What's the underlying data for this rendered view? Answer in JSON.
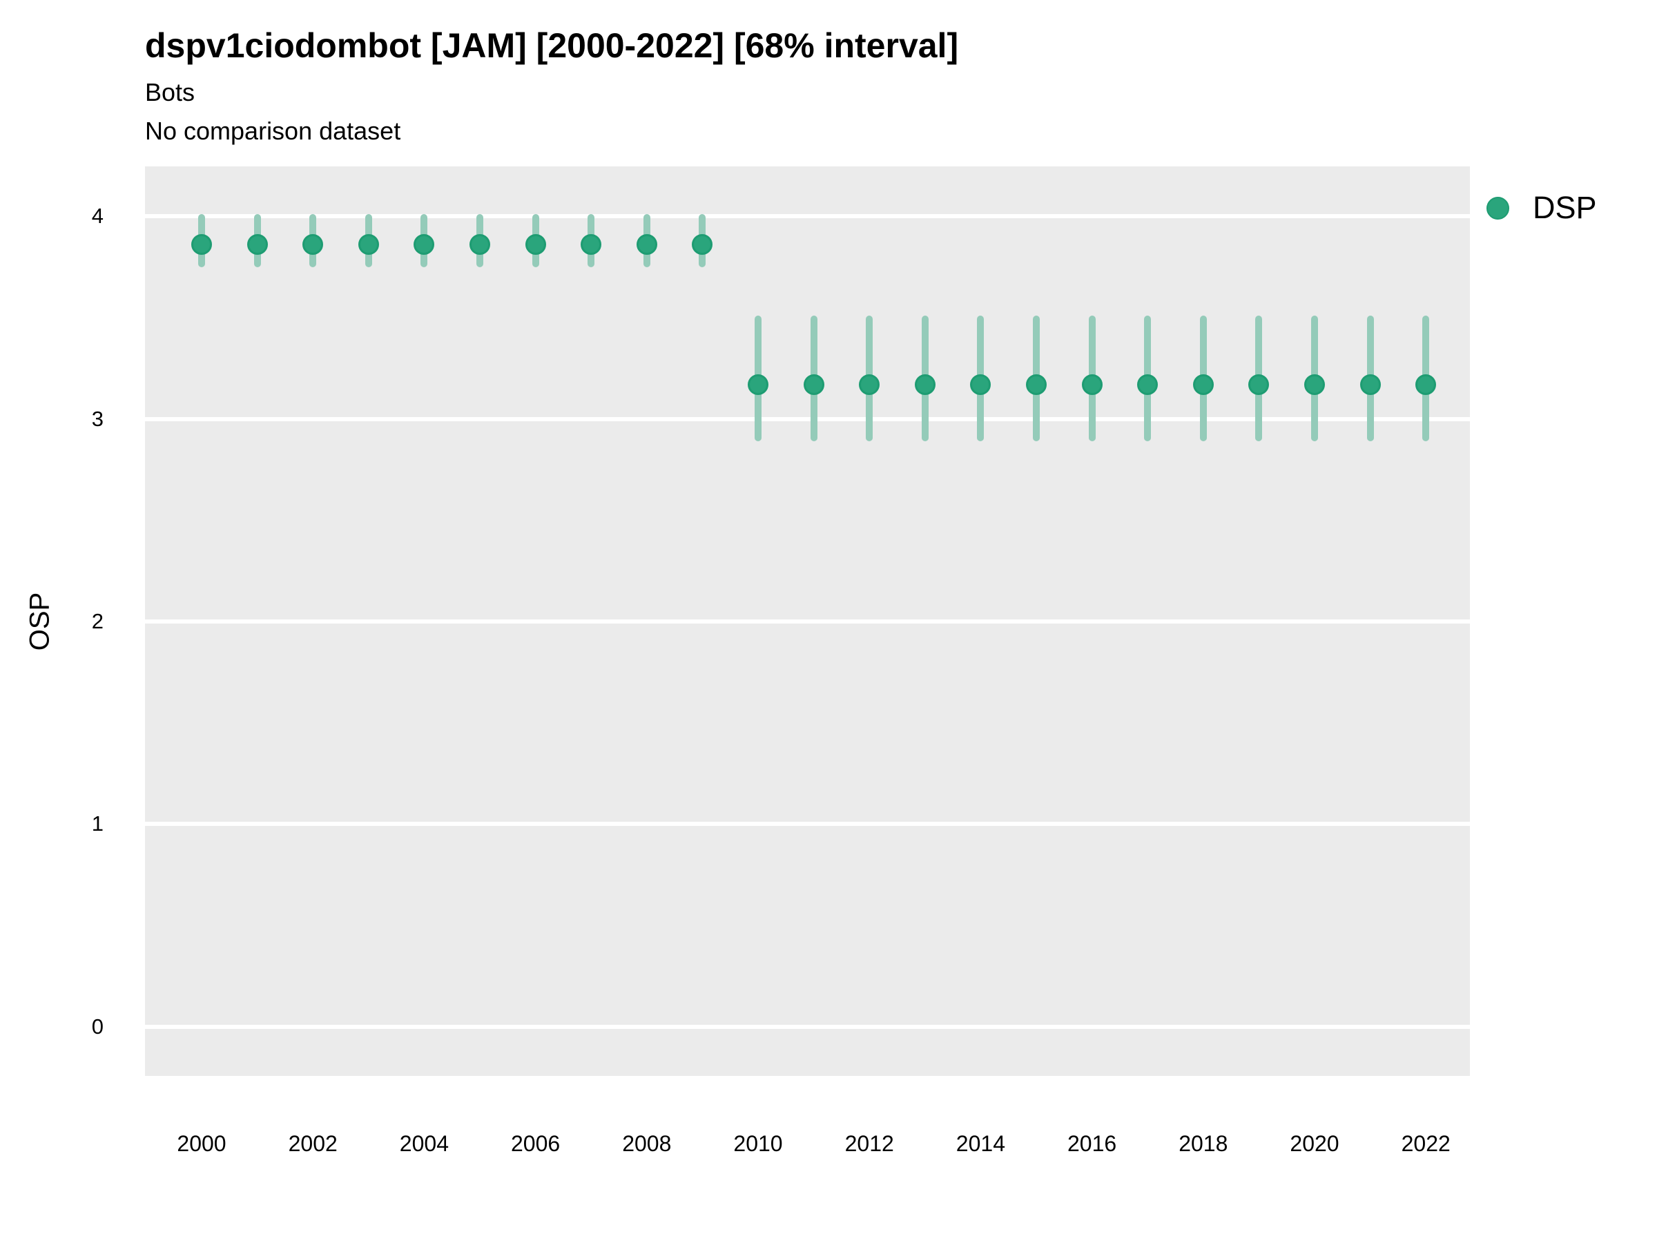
{
  "title": "dspv1ciodombot [JAM] [2000-2022] [68% interval]",
  "subtitle": "Bots",
  "comparison_note": "No comparison dataset",
  "legend": {
    "position": "right-top",
    "items": [
      {
        "label": "DSP",
        "color": "#2aa57c"
      }
    ]
  },
  "colors": {
    "background": "#ffffff",
    "panel_bg": "#ebebeb",
    "gridline": "#ffffff",
    "point": "#2aa57c",
    "point_border": "#1e9c72",
    "interval_bar": "#94cbb9",
    "text": "#000000"
  },
  "chart_data": {
    "type": "scatter",
    "title": "dspv1ciodombot [JAM] [2000-2022] [68% interval]",
    "subtitle": "Bots",
    "annotation": "No comparison dataset",
    "xlabel": "",
    "ylabel": "OSP",
    "interval": "68%",
    "ylim": [
      -0.25,
      4.25
    ],
    "yticks": [
      0,
      1,
      2,
      3,
      4
    ],
    "xticks": [
      2000,
      2002,
      2004,
      2006,
      2008,
      2010,
      2012,
      2014,
      2016,
      2018,
      2020,
      2022
    ],
    "grid": "horizontal-major-white",
    "legend_position": "right-top",
    "series": [
      {
        "name": "DSP",
        "x": [
          2000,
          2001,
          2002,
          2003,
          2004,
          2005,
          2006,
          2007,
          2008,
          2009,
          2010,
          2011,
          2012,
          2013,
          2014,
          2015,
          2016,
          2017,
          2018,
          2019,
          2020,
          2021,
          2022
        ],
        "y": [
          3.86,
          3.86,
          3.86,
          3.86,
          3.86,
          3.86,
          3.86,
          3.86,
          3.86,
          3.86,
          3.17,
          3.17,
          3.17,
          3.17,
          3.17,
          3.17,
          3.17,
          3.17,
          3.17,
          3.17,
          3.17,
          3.17,
          3.17
        ],
        "y_low": [
          3.75,
          3.75,
          3.75,
          3.75,
          3.75,
          3.75,
          3.75,
          3.75,
          3.75,
          3.75,
          2.89,
          2.89,
          2.89,
          2.89,
          2.89,
          2.89,
          2.89,
          2.89,
          2.89,
          2.89,
          2.89,
          2.89,
          2.89
        ],
        "y_high": [
          4.01,
          4.01,
          4.01,
          4.01,
          4.01,
          4.01,
          4.01,
          4.01,
          4.01,
          4.01,
          3.51,
          3.51,
          3.51,
          3.51,
          3.51,
          3.51,
          3.51,
          3.51,
          3.51,
          3.51,
          3.51,
          3.51,
          3.51
        ]
      }
    ]
  }
}
